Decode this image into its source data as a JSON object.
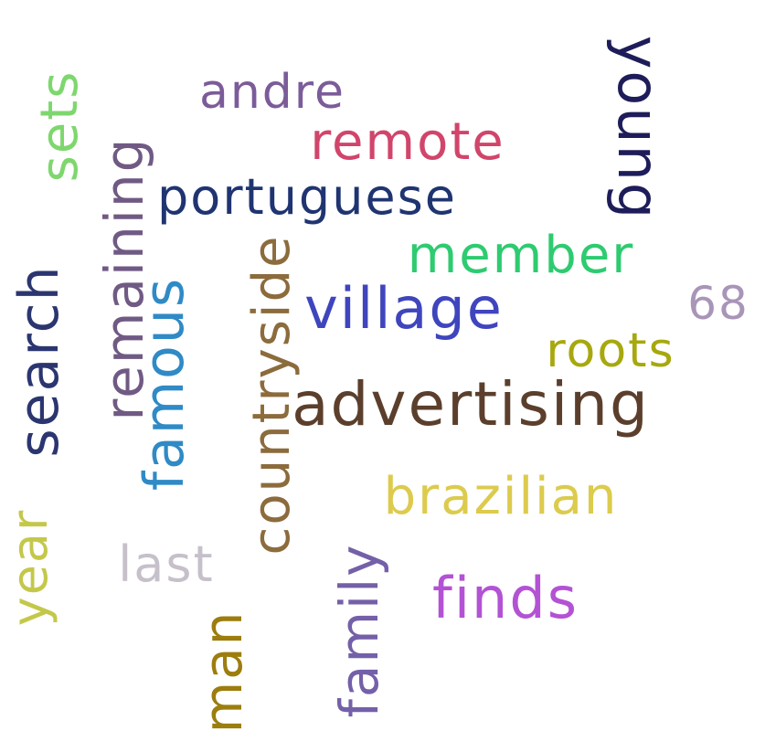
{
  "cloud": {
    "words": [
      {
        "id": "andre",
        "text": "andre",
        "color": "#7b5c99"
      },
      {
        "id": "remote",
        "text": "remote",
        "color": "#d1456b"
      },
      {
        "id": "portuguese",
        "text": "portuguese",
        "color": "#1f3471"
      },
      {
        "id": "young",
        "text": "young",
        "color": "#1e1d5a"
      },
      {
        "id": "sets",
        "text": "sets",
        "color": "#7ed76e"
      },
      {
        "id": "remaining",
        "text": "remaining",
        "color": "#705a84"
      },
      {
        "id": "member",
        "text": "member",
        "color": "#2ecb70"
      },
      {
        "id": "n68",
        "text": "68",
        "color": "#a895b8"
      },
      {
        "id": "village",
        "text": "village",
        "color": "#3f45bd"
      },
      {
        "id": "search",
        "text": "search",
        "color": "#2b3670"
      },
      {
        "id": "famous",
        "text": "famous",
        "color": "#2f8ac6"
      },
      {
        "id": "countryside",
        "text": "countryside",
        "color": "#8c6b3c"
      },
      {
        "id": "roots",
        "text": "roots",
        "color": "#a7a80e"
      },
      {
        "id": "advertising",
        "text": "advertising",
        "color": "#5b3f2c"
      },
      {
        "id": "brazilian",
        "text": "brazilian",
        "color": "#dccb4d"
      },
      {
        "id": "year",
        "text": "year",
        "color": "#c4c84a"
      },
      {
        "id": "last",
        "text": "last",
        "color": "#c6c0cb"
      },
      {
        "id": "finds",
        "text": "finds",
        "color": "#b352d4"
      },
      {
        "id": "family",
        "text": "family",
        "color": "#7460a9"
      },
      {
        "id": "man",
        "text": "man",
        "color": "#9c7d0e"
      }
    ]
  }
}
